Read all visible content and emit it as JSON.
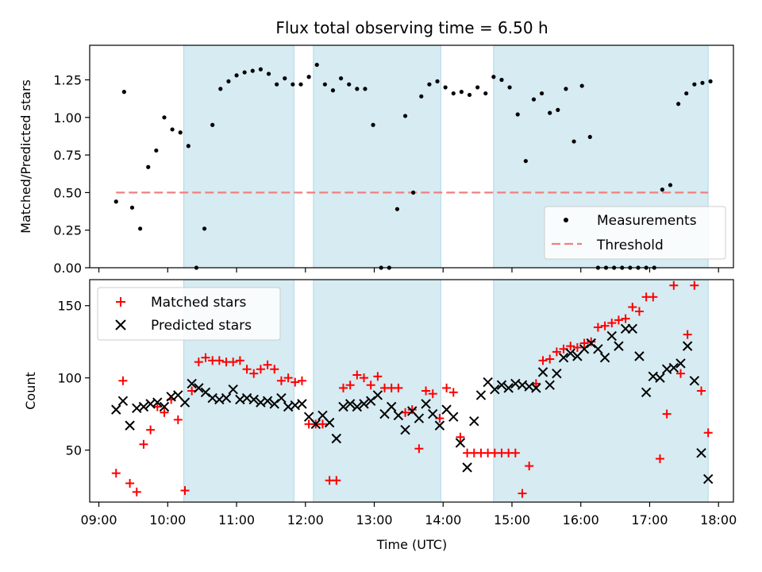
{
  "chart_data": [
    {
      "type": "scatter",
      "title": "Flux total observing time = 6.50 h",
      "xlabel": "",
      "ylabel": "Matched/Predicted stars",
      "x_type": "time",
      "xlim": [
        "08:52",
        "18:13"
      ],
      "ylim": [
        0,
        1.48
      ],
      "yticks": [
        0.0,
        0.25,
        0.5,
        0.75,
        1.0,
        1.25
      ],
      "ytick_labels": [
        "0.00",
        "0.25",
        "0.50",
        "0.75",
        "1.00",
        "1.25"
      ],
      "legend": {
        "position": "lower-right",
        "entries": [
          "Measurements",
          "Threshold"
        ]
      },
      "shaded_periods": [
        [
          "10:14",
          "11:50"
        ],
        [
          "12:07",
          "13:58"
        ],
        [
          "14:44",
          "17:51"
        ]
      ],
      "threshold": {
        "name": "Threshold",
        "y": 0.5,
        "x": [
          "09:15",
          "17:51"
        ],
        "color": "#f08080",
        "style": "dashed"
      },
      "series": [
        {
          "name": "Measurements",
          "marker": "dot",
          "color": "#000000",
          "x": [
            "09:15",
            "09:22",
            "09:29",
            "09:36",
            "09:43",
            "09:50",
            "09:57",
            "10:04",
            "10:11",
            "10:18",
            "10:25",
            "10:32",
            "10:39",
            "10:46",
            "10:53",
            "11:00",
            "11:07",
            "11:14",
            "11:21",
            "11:28",
            "11:35",
            "11:42",
            "11:49",
            "11:56",
            "12:03",
            "12:10",
            "12:17",
            "12:24",
            "12:31",
            "12:38",
            "12:45",
            "12:52",
            "12:59",
            "13:06",
            "13:13",
            "13:20",
            "13:27",
            "13:34",
            "13:41",
            "13:48",
            "13:55",
            "14:02",
            "14:09",
            "14:16",
            "14:23",
            "14:30",
            "14:37",
            "14:44",
            "14:51",
            "14:58",
            "15:05",
            "15:12",
            "15:19",
            "15:26",
            "15:33",
            "15:40",
            "15:47",
            "15:54",
            "16:01",
            "16:08",
            "16:15",
            "16:22",
            "16:29",
            "16:36",
            "16:43",
            "16:50",
            "16:57",
            "17:04",
            "17:11",
            "17:18",
            "17:25",
            "17:32",
            "17:39",
            "17:46",
            "17:53"
          ],
          "y": [
            0.44,
            1.17,
            0.4,
            0.26,
            0.67,
            0.78,
            1.0,
            0.92,
            0.9,
            0.81,
            0.0,
            0.26,
            0.95,
            1.19,
            1.24,
            1.28,
            1.3,
            1.31,
            1.32,
            1.29,
            1.22,
            1.26,
            1.22,
            1.22,
            1.27,
            1.35,
            1.22,
            1.18,
            1.26,
            1.22,
            1.19,
            1.19,
            0.95,
            0.0,
            0.0,
            0.39,
            1.01,
            0.5,
            1.14,
            1.22,
            1.24,
            1.2,
            1.16,
            1.17,
            1.15,
            1.2,
            1.16,
            1.27,
            1.25,
            1.2,
            1.02,
            0.71,
            1.12,
            1.16,
            1.03,
            1.05,
            1.19,
            0.84,
            1.21,
            0.87,
            0.0,
            0.0,
            0.0,
            0.0,
            0.0,
            0.0,
            0.0,
            0.0,
            0.52,
            0.55,
            1.09,
            1.16,
            1.22,
            1.23,
            1.24
          ]
        }
      ]
    },
    {
      "type": "scatter",
      "title": "",
      "xlabel": "Time (UTC)",
      "ylabel": "Count",
      "x_type": "time",
      "xlim": [
        "08:52",
        "18:13"
      ],
      "xticks": [
        "09:00",
        "10:00",
        "11:00",
        "12:00",
        "13:00",
        "14:00",
        "15:00",
        "16:00",
        "17:00",
        "18:00"
      ],
      "ylim": [
        14,
        168
      ],
      "yticks": [
        50,
        100,
        150
      ],
      "legend": {
        "position": "upper-left",
        "entries": [
          "Matched stars",
          "Predicted stars"
        ]
      },
      "shaded_periods": [
        [
          "10:14",
          "11:50"
        ],
        [
          "12:07",
          "13:58"
        ],
        [
          "14:44",
          "17:51"
        ]
      ],
      "series": [
        {
          "name": "Matched stars",
          "marker": "plus",
          "color": "#ff0000",
          "x": [
            "09:15",
            "09:21",
            "09:27",
            "09:33",
            "09:39",
            "09:45",
            "09:51",
            "09:57",
            "10:03",
            "10:09",
            "10:15",
            "10:21",
            "10:27",
            "10:33",
            "10:39",
            "10:45",
            "10:51",
            "10:57",
            "11:03",
            "11:09",
            "11:15",
            "11:21",
            "11:27",
            "11:33",
            "11:39",
            "11:45",
            "11:51",
            "11:57",
            "12:03",
            "12:09",
            "12:15",
            "12:21",
            "12:27",
            "12:33",
            "12:39",
            "12:45",
            "12:51",
            "12:57",
            "13:03",
            "13:09",
            "13:15",
            "13:21",
            "13:27",
            "13:33",
            "13:39",
            "13:45",
            "13:51",
            "13:57",
            "14:03",
            "14:09",
            "14:15",
            "14:21",
            "14:27",
            "14:33",
            "14:39",
            "14:45",
            "14:51",
            "14:57",
            "15:03",
            "15:09",
            "15:15",
            "15:21",
            "15:27",
            "15:33",
            "15:39",
            "15:45",
            "15:51",
            "15:57",
            "16:03",
            "16:09",
            "16:15",
            "16:21",
            "16:27",
            "16:33",
            "16:39",
            "16:45",
            "16:51",
            "16:57",
            "17:03",
            "17:09",
            "17:15",
            "17:21",
            "17:27",
            "17:33",
            "17:39",
            "17:45",
            "17:51"
          ],
          "y": [
            34,
            98,
            27,
            21,
            54,
            64,
            80,
            76,
            85,
            71,
            22,
            91,
            111,
            114,
            112,
            112,
            111,
            111,
            112,
            106,
            103,
            106,
            109,
            106,
            98,
            100,
            97,
            98,
            68,
            68,
            68,
            29,
            29,
            93,
            95,
            102,
            100,
            95,
            101,
            93,
            93,
            93,
            76,
            78,
            51,
            91,
            89,
            72,
            93,
            90,
            59,
            48,
            48,
            48,
            48,
            48,
            48,
            48,
            48,
            20,
            39,
            96,
            112,
            113,
            118,
            120,
            122,
            121,
            124,
            125,
            135,
            136,
            138,
            140,
            141,
            149,
            146,
            156,
            156,
            44,
            75,
            164,
            103,
            130,
            164,
            91,
            62
          ]
        },
        {
          "name": "Predicted stars",
          "marker": "x",
          "color": "#000000",
          "x": [
            "09:15",
            "09:21",
            "09:27",
            "09:33",
            "09:39",
            "09:45",
            "09:51",
            "09:57",
            "10:03",
            "10:09",
            "10:15",
            "10:21",
            "10:27",
            "10:33",
            "10:39",
            "10:45",
            "10:51",
            "10:57",
            "11:03",
            "11:09",
            "11:15",
            "11:21",
            "11:27",
            "11:33",
            "11:39",
            "11:45",
            "11:51",
            "11:57",
            "12:03",
            "12:09",
            "12:15",
            "12:21",
            "12:27",
            "12:33",
            "12:39",
            "12:45",
            "12:51",
            "12:57",
            "13:03",
            "13:09",
            "13:15",
            "13:21",
            "13:27",
            "13:33",
            "13:39",
            "13:45",
            "13:51",
            "13:57",
            "14:03",
            "14:09",
            "14:15",
            "14:21",
            "14:27",
            "14:33",
            "14:39",
            "14:45",
            "14:51",
            "14:57",
            "15:03",
            "15:09",
            "15:15",
            "15:21",
            "15:27",
            "15:33",
            "15:39",
            "15:45",
            "15:51",
            "15:57",
            "16:03",
            "16:09",
            "16:15",
            "16:21",
            "16:27",
            "16:33",
            "16:39",
            "16:45",
            "16:51",
            "16:57",
            "17:03",
            "17:09",
            "17:15",
            "17:21",
            "17:27",
            "17:33",
            "17:39",
            "17:45",
            "17:51"
          ],
          "y": [
            78,
            84,
            67,
            79,
            80,
            82,
            83,
            80,
            87,
            88,
            83,
            96,
            93,
            90,
            86,
            85,
            86,
            92,
            85,
            86,
            85,
            83,
            84,
            82,
            86,
            80,
            81,
            82,
            73,
            68,
            74,
            69,
            58,
            80,
            82,
            80,
            82,
            84,
            88,
            75,
            80,
            74,
            64,
            77,
            72,
            82,
            75,
            67,
            78,
            73,
            55,
            38,
            70,
            88,
            97,
            92,
            95,
            93,
            96,
            95,
            94,
            93,
            104,
            95,
            103,
            114,
            117,
            115,
            120,
            124,
            120,
            114,
            129,
            122,
            134,
            134,
            115,
            90,
            101,
            100,
            106,
            107,
            110,
            122,
            98,
            48,
            30
          ]
        }
      ]
    }
  ]
}
